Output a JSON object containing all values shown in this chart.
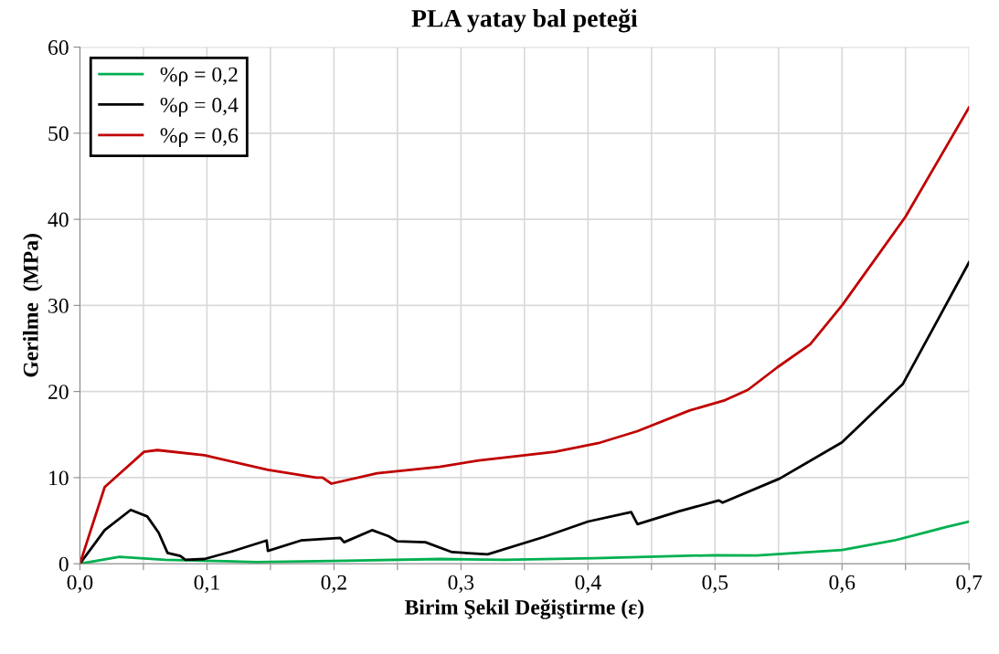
{
  "chart_data": {
    "type": "line",
    "title": "PLA yatay bal peteği",
    "xlabel": "Birim Şekil Değiştirme (ε)",
    "ylabel": "Gerilme  (MPa)",
    "xlim": [
      0,
      0.7
    ],
    "ylim": [
      0,
      60
    ],
    "xticks": [
      {
        "value": 0,
        "label": "0,0"
      },
      {
        "value": 0.05,
        "label": null
      },
      {
        "value": 0.1,
        "label": "0,1"
      },
      {
        "value": 0.15,
        "label": null
      },
      {
        "value": 0.2,
        "label": "0,2"
      },
      {
        "value": 0.25,
        "label": null
      },
      {
        "value": 0.3,
        "label": "0,3"
      },
      {
        "value": 0.35,
        "label": null
      },
      {
        "value": 0.4,
        "label": "0,4"
      },
      {
        "value": 0.45,
        "label": null
      },
      {
        "value": 0.5,
        "label": "0,5"
      },
      {
        "value": 0.55,
        "label": null
      },
      {
        "value": 0.6,
        "label": "0,6"
      },
      {
        "value": 0.65,
        "label": null
      },
      {
        "value": 0.7,
        "label": "0,7"
      }
    ],
    "yticks": [
      0,
      10,
      20,
      30,
      40,
      50,
      60
    ],
    "grid": true,
    "legend": "top left",
    "marker": "none",
    "line_style": "solid",
    "series": [
      {
        "name": "%ρ = 0,2",
        "color": "#00b050",
        "x": [
          0,
          0.031,
          0.067,
          0.139,
          0.21,
          0.284,
          0.334,
          0.405,
          0.5,
          0.533,
          0.6,
          0.641,
          0.683,
          0.7
        ],
        "values": [
          0,
          0.8,
          0.45,
          0.2,
          0.35,
          0.55,
          0.45,
          0.65,
          1.0,
          0.95,
          1.6,
          2.7,
          4.3,
          4.9
        ]
      },
      {
        "name": "%ρ = 0,4",
        "color": "#000000",
        "x": [
          0,
          0.0195,
          0.04,
          0.053,
          0.062,
          0.069,
          0.079,
          0.083,
          0.098,
          0.119,
          0.147,
          0.148,
          0.174,
          0.205,
          0.208,
          0.23,
          0.243,
          0.25,
          0.272,
          0.293,
          0.321,
          0.365,
          0.4,
          0.434,
          0.439,
          0.472,
          0.503,
          0.506,
          0.551,
          0.6,
          0.648,
          0.7
        ],
        "values": [
          0,
          3.9,
          6.25,
          5.5,
          3.6,
          1.25,
          0.9,
          0.45,
          0.55,
          1.4,
          2.7,
          1.5,
          2.7,
          3.0,
          2.5,
          3.9,
          3.2,
          2.6,
          2.5,
          1.35,
          1.1,
          3.1,
          4.9,
          6.0,
          4.6,
          6.1,
          7.35,
          7.1,
          9.9,
          14.1,
          20.9,
          35.0
        ]
      },
      {
        "name": "%ρ = 0,6",
        "color": "#c00000",
        "x": [
          0,
          0.0195,
          0.0505,
          0.061,
          0.098,
          0.148,
          0.186,
          0.191,
          0.198,
          0.234,
          0.283,
          0.314,
          0.374,
          0.408,
          0.439,
          0.48,
          0.508,
          0.526,
          0.549,
          0.575,
          0.6,
          0.65,
          0.7
        ],
        "values": [
          0,
          8.9,
          13.0,
          13.2,
          12.6,
          10.9,
          10.0,
          10.0,
          9.3,
          10.5,
          11.25,
          12.0,
          13.0,
          14.0,
          15.4,
          17.8,
          19.0,
          20.2,
          22.8,
          25.5,
          30.0,
          40.3,
          53.0
        ]
      }
    ]
  }
}
